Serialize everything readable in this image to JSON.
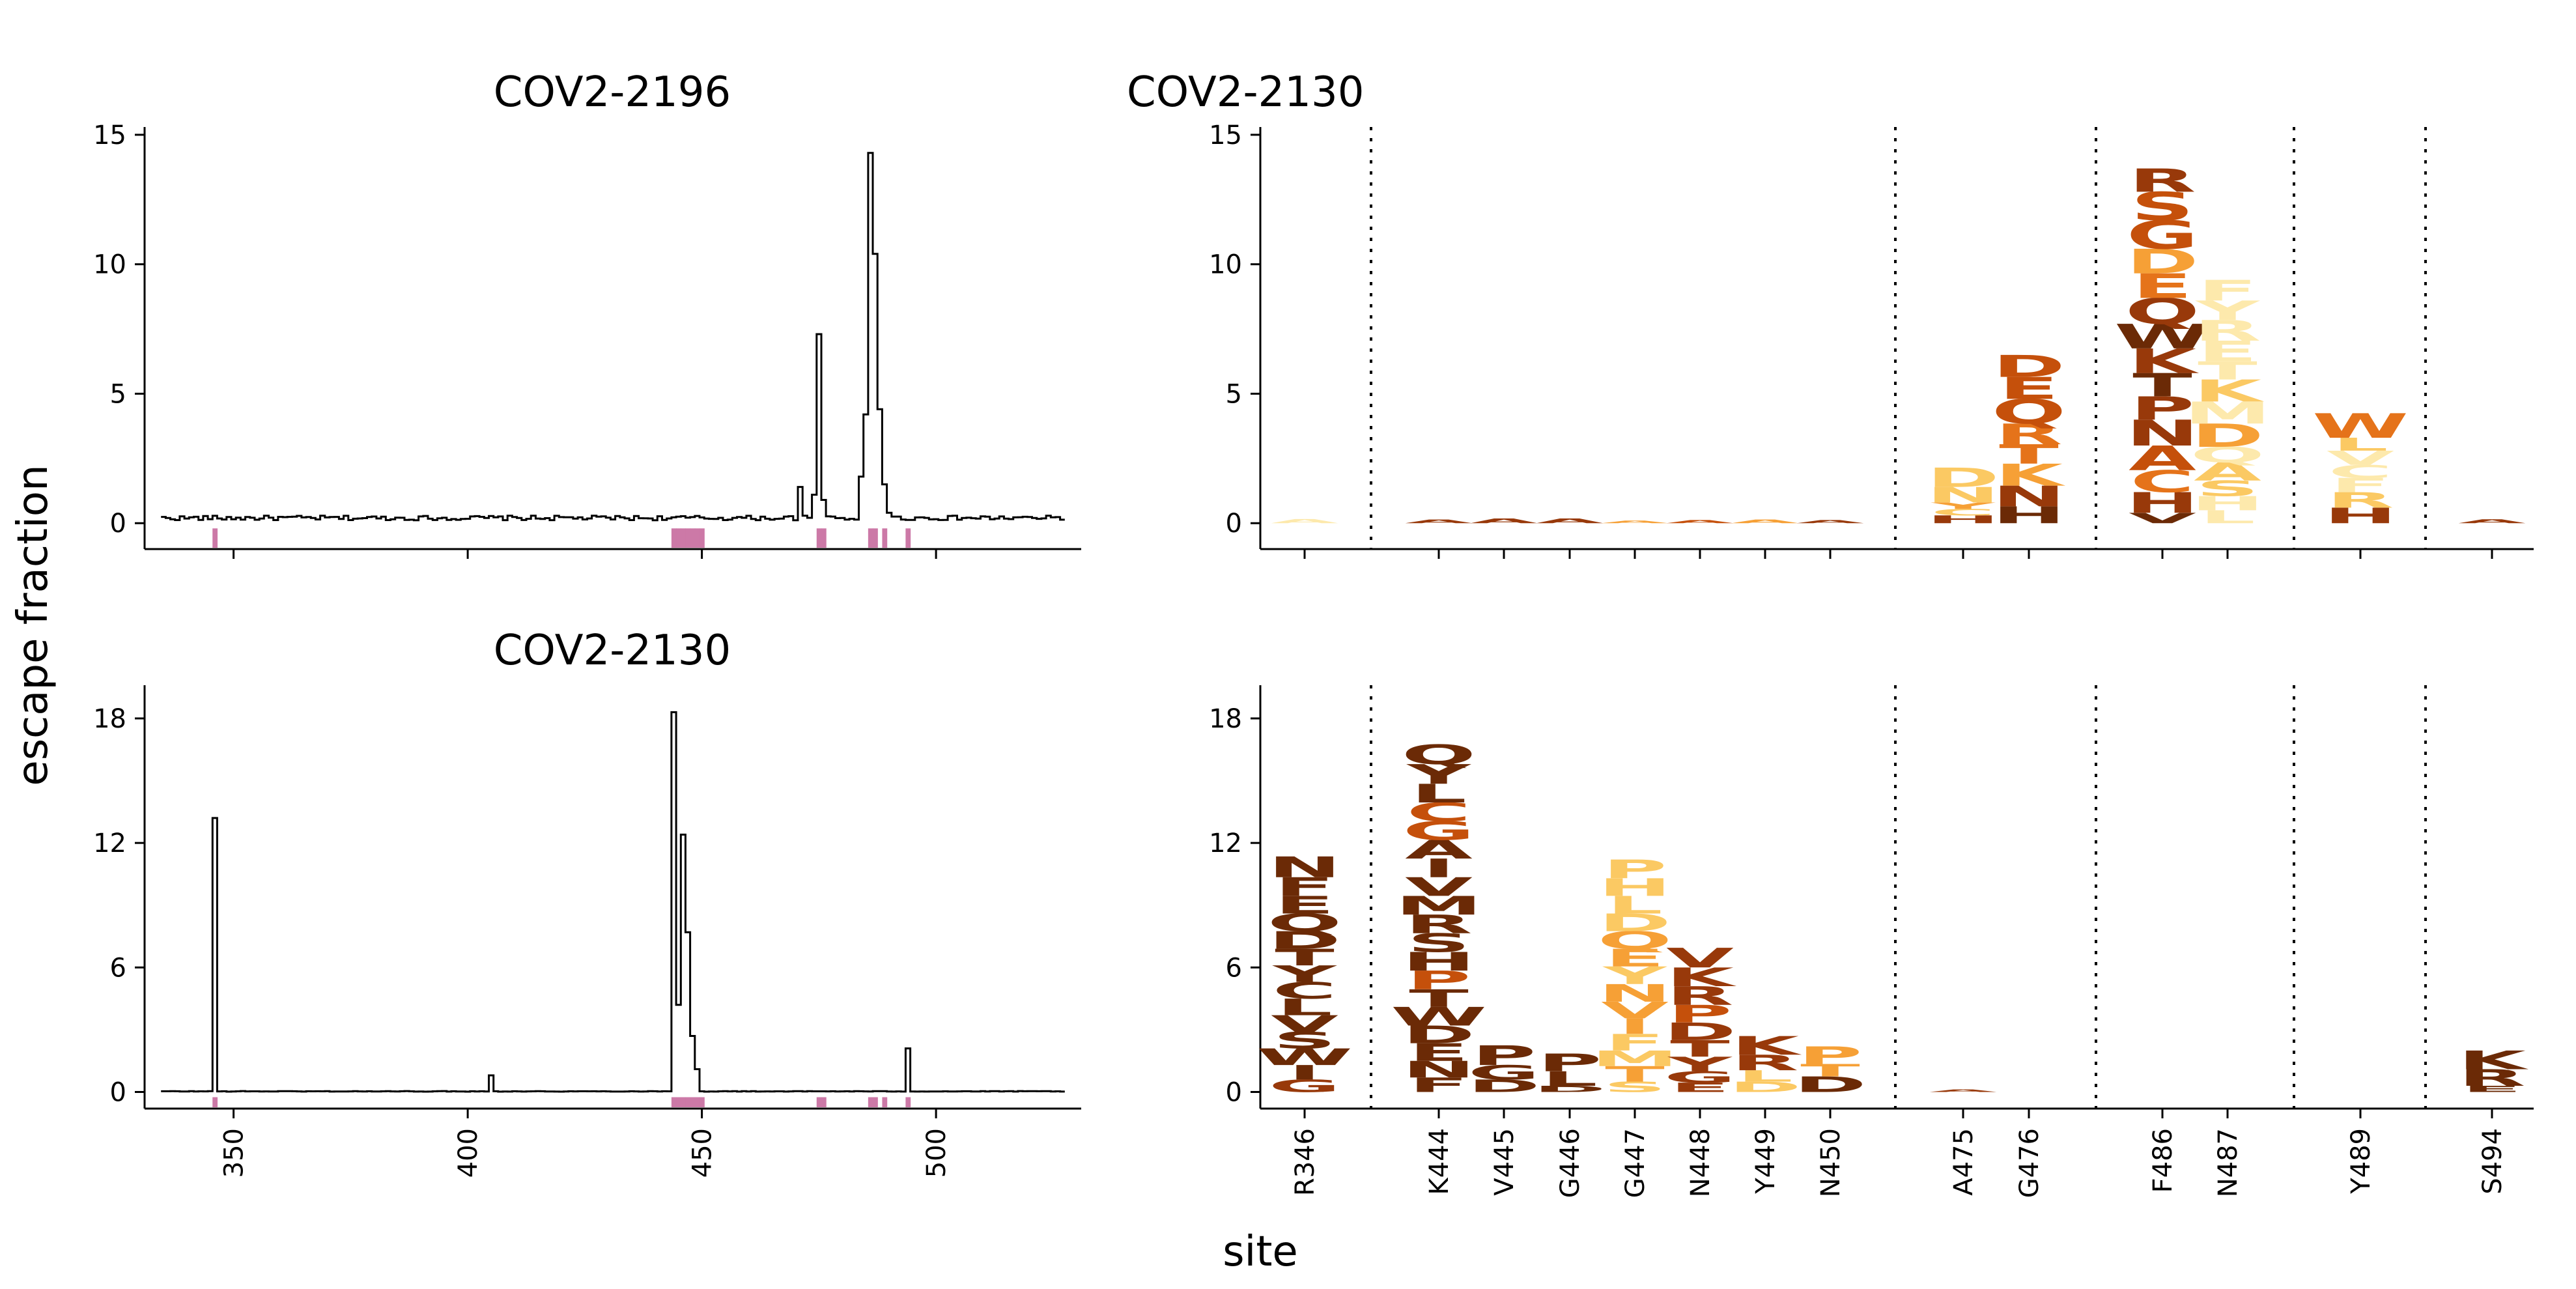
{
  "figure": {
    "ylabel": "escape fraction",
    "xlabel": "site"
  },
  "colors": {
    "trace": "#000000",
    "site_marker": "#cc79a7",
    "divider": "#000000",
    "logo_scale": [
      "#fde9ac",
      "#fbc963",
      "#f6a036",
      "#e5731a",
      "#c5500b",
      "#98390a",
      "#6b2a06"
    ]
  },
  "chart_data": [
    {
      "type": "line",
      "title": "COV2-2196",
      "xlim": [
        331,
        531
      ],
      "ylim": [
        -1,
        15.3
      ],
      "yticks": [
        0,
        5,
        10,
        15
      ],
      "xticks": [
        350,
        400,
        450,
        500
      ],
      "show_xtick_labels": false,
      "baseline": 0.2,
      "peaks": [
        [
          471,
          1.4
        ],
        [
          474,
          1.1
        ],
        [
          475,
          7.3
        ],
        [
          476,
          0.9
        ],
        [
          484,
          1.8
        ],
        [
          485,
          4.2
        ],
        [
          486,
          14.3
        ],
        [
          487,
          10.4
        ],
        [
          488,
          4.4
        ],
        [
          489,
          1.5
        ],
        [
          490,
          0.4
        ]
      ],
      "site_markers": [
        346,
        444,
        445,
        446,
        447,
        448,
        449,
        450,
        475,
        476,
        486,
        487,
        489,
        494
      ]
    },
    {
      "type": "line",
      "title": "COV2-2130",
      "xlim": [
        331,
        531
      ],
      "ylim": [
        -0.8,
        19.6
      ],
      "yticks": [
        0,
        6,
        12,
        18
      ],
      "xticks": [
        350,
        400,
        450,
        500
      ],
      "show_xtick_labels": true,
      "baseline": 0.03,
      "peaks": [
        [
          346,
          13.2
        ],
        [
          405,
          0.8
        ],
        [
          444,
          18.3
        ],
        [
          445,
          4.2
        ],
        [
          446,
          12.4
        ],
        [
          447,
          7.7
        ],
        [
          448,
          2.7
        ],
        [
          449,
          1.1
        ],
        [
          494,
          2.1
        ]
      ],
      "site_markers": [
        346,
        444,
        445,
        446,
        447,
        448,
        449,
        450,
        475,
        476,
        486,
        487,
        489,
        494
      ]
    },
    {
      "type": "logo",
      "title": "COV2-2130",
      "ylim": [
        -1,
        15.3
      ],
      "yticks": [
        0,
        5,
        10,
        15
      ],
      "sites": [
        "R346",
        "K444",
        "V445",
        "G446",
        "G447",
        "N448",
        "Y449",
        "N450",
        "A475",
        "G476",
        "F486",
        "N487",
        "Y489",
        "S494"
      ],
      "group_breaks_after": [
        "R346",
        "N450",
        "G476",
        "N487",
        "Y489"
      ],
      "show_site_labels": false,
      "stacks": [
        {
          "site": "R346",
          "letters": [
            {
              "aa": "A",
              "h": 0.16,
              "c": 0
            }
          ]
        },
        {
          "site": "K444",
          "letters": [
            {
              "aa": "A",
              "h": 0.14,
              "c": 5
            }
          ]
        },
        {
          "site": "V445",
          "letters": [
            {
              "aa": "A",
              "h": 0.18,
              "c": 5
            }
          ]
        },
        {
          "site": "G446",
          "letters": [
            {
              "aa": "A",
              "h": 0.18,
              "c": 5
            }
          ]
        },
        {
          "site": "G447",
          "letters": [
            {
              "aa": "A",
              "h": 0.1,
              "c": 2
            }
          ]
        },
        {
          "site": "N448",
          "letters": [
            {
              "aa": "A",
              "h": 0.12,
              "c": 4
            }
          ]
        },
        {
          "site": "Y449",
          "letters": [
            {
              "aa": "A",
              "h": 0.14,
              "c": 2
            }
          ]
        },
        {
          "site": "N450",
          "letters": [
            {
              "aa": "A",
              "h": 0.12,
              "c": 5
            }
          ]
        },
        {
          "site": "A475",
          "letters": [
            {
              "aa": "H",
              "h": 0.3,
              "c": 5
            },
            {
              "aa": "C",
              "h": 0.25,
              "c": 1
            },
            {
              "aa": "Y",
              "h": 0.25,
              "c": 2
            },
            {
              "aa": "N",
              "h": 0.6,
              "c": 1
            },
            {
              "aa": "D",
              "h": 0.75,
              "c": 1
            }
          ]
        },
        {
          "site": "G476",
          "letters": [
            {
              "aa": "H",
              "h": 0.65,
              "c": 6
            },
            {
              "aa": "N",
              "h": 0.8,
              "c": 5
            },
            {
              "aa": "K",
              "h": 0.85,
              "c": 2
            },
            {
              "aa": "T",
              "h": 0.75,
              "c": 3
            },
            {
              "aa": "R",
              "h": 0.8,
              "c": 3
            },
            {
              "aa": "Q",
              "h": 0.95,
              "c": 4
            },
            {
              "aa": "E",
              "h": 0.85,
              "c": 4
            },
            {
              "aa": "D",
              "h": 0.85,
              "c": 4
            }
          ]
        },
        {
          "site": "F486",
          "letters": [
            {
              "aa": "V",
              "h": 0.4,
              "c": 6
            },
            {
              "aa": "H",
              "h": 0.8,
              "c": 5
            },
            {
              "aa": "C",
              "h": 0.85,
              "c": 3
            },
            {
              "aa": "A",
              "h": 0.95,
              "c": 4
            },
            {
              "aa": "N",
              "h": 1.0,
              "c": 5
            },
            {
              "aa": "P",
              "h": 0.9,
              "c": 5
            },
            {
              "aa": "T",
              "h": 0.9,
              "c": 6
            },
            {
              "aa": "K",
              "h": 0.95,
              "c": 5
            },
            {
              "aa": "W",
              "h": 0.95,
              "c": 6
            },
            {
              "aa": "Q",
              "h": 1.0,
              "c": 5
            },
            {
              "aa": "E",
              "h": 0.95,
              "c": 3
            },
            {
              "aa": "D",
              "h": 0.95,
              "c": 2
            },
            {
              "aa": "G",
              "h": 1.1,
              "c": 4
            },
            {
              "aa": "S",
              "h": 1.1,
              "c": 4
            },
            {
              "aa": "R",
              "h": 0.9,
              "c": 5
            }
          ]
        },
        {
          "site": "N487",
          "letters": [
            {
              "aa": "L",
              "h": 0.5,
              "c": 0
            },
            {
              "aa": "H",
              "h": 0.55,
              "c": 0
            },
            {
              "aa": "S",
              "h": 0.6,
              "c": 1
            },
            {
              "aa": "A",
              "h": 0.7,
              "c": 1
            },
            {
              "aa": "Q",
              "h": 0.6,
              "c": 0
            },
            {
              "aa": "D",
              "h": 0.9,
              "c": 2
            },
            {
              "aa": "M",
              "h": 0.85,
              "c": 0
            },
            {
              "aa": "K",
              "h": 0.85,
              "c": 1
            },
            {
              "aa": "T",
              "h": 0.7,
              "c": 0
            },
            {
              "aa": "E",
              "h": 0.8,
              "c": 0
            },
            {
              "aa": "R",
              "h": 0.8,
              "c": 0
            },
            {
              "aa": "Y",
              "h": 0.75,
              "c": 0
            },
            {
              "aa": "F",
              "h": 0.8,
              "c": 0
            }
          ]
        },
        {
          "site": "Y489",
          "letters": [
            {
              "aa": "H",
              "h": 0.6,
              "c": 5
            },
            {
              "aa": "R",
              "h": 0.6,
              "c": 1
            },
            {
              "aa": "F",
              "h": 0.55,
              "c": 0
            },
            {
              "aa": "C",
              "h": 0.5,
              "c": 0
            },
            {
              "aa": "V",
              "h": 0.55,
              "c": 0
            },
            {
              "aa": "L",
              "h": 0.5,
              "c": 1
            },
            {
              "aa": "W",
              "h": 0.95,
              "c": 3
            }
          ]
        },
        {
          "site": "S494",
          "letters": [
            {
              "aa": "A",
              "h": 0.15,
              "c": 5
            }
          ]
        }
      ]
    },
    {
      "type": "logo",
      "title": "",
      "ylim": [
        -0.8,
        19.6
      ],
      "yticks": [
        0,
        6,
        12,
        18
      ],
      "sites": [
        "R346",
        "K444",
        "V445",
        "G446",
        "G447",
        "N448",
        "Y449",
        "N450",
        "A475",
        "G476",
        "F486",
        "N487",
        "Y489",
        "S494"
      ],
      "group_breaks_after": [
        "R346",
        "N450",
        "G476",
        "N487",
        "Y489"
      ],
      "show_site_labels": true,
      "stacks": [
        {
          "site": "R346",
          "letters": [
            {
              "aa": "G",
              "h": 0.6,
              "c": 5
            },
            {
              "aa": "I",
              "h": 0.7,
              "c": 6
            },
            {
              "aa": "W",
              "h": 0.8,
              "c": 6
            },
            {
              "aa": "S",
              "h": 0.8,
              "c": 6
            },
            {
              "aa": "V",
              "h": 0.8,
              "c": 6
            },
            {
              "aa": "L",
              "h": 0.8,
              "c": 6
            },
            {
              "aa": "C",
              "h": 0.8,
              "c": 6
            },
            {
              "aa": "Y",
              "h": 0.8,
              "c": 6
            },
            {
              "aa": "T",
              "h": 0.8,
              "c": 6
            },
            {
              "aa": "D",
              "h": 0.85,
              "c": 6
            },
            {
              "aa": "Q",
              "h": 0.85,
              "c": 6
            },
            {
              "aa": "E",
              "h": 0.85,
              "c": 6
            },
            {
              "aa": "F",
              "h": 0.9,
              "c": 6
            },
            {
              "aa": "N",
              "h": 1.0,
              "c": 6
            }
          ]
        },
        {
          "site": "K444",
          "letters": [
            {
              "aa": "F",
              "h": 0.7,
              "c": 6
            },
            {
              "aa": "N",
              "h": 0.8,
              "c": 6
            },
            {
              "aa": "E",
              "h": 0.85,
              "c": 6
            },
            {
              "aa": "D",
              "h": 0.85,
              "c": 6
            },
            {
              "aa": "W",
              "h": 0.9,
              "c": 6
            },
            {
              "aa": "T",
              "h": 0.85,
              "c": 6
            },
            {
              "aa": "P",
              "h": 0.9,
              "c": 4
            },
            {
              "aa": "H",
              "h": 0.9,
              "c": 6
            },
            {
              "aa": "S",
              "h": 0.9,
              "c": 6
            },
            {
              "aa": "R",
              "h": 0.9,
              "c": 6
            },
            {
              "aa": "M",
              "h": 0.9,
              "c": 6
            },
            {
              "aa": "V",
              "h": 0.9,
              "c": 6
            },
            {
              "aa": "I",
              "h": 0.9,
              "c": 6
            },
            {
              "aa": "A",
              "h": 0.9,
              "c": 6
            },
            {
              "aa": "G",
              "h": 0.9,
              "c": 4
            },
            {
              "aa": "C",
              "h": 0.9,
              "c": 4
            },
            {
              "aa": "L",
              "h": 0.9,
              "c": 6
            },
            {
              "aa": "Y",
              "h": 0.95,
              "c": 6
            },
            {
              "aa": "Q",
              "h": 0.95,
              "c": 6
            }
          ]
        },
        {
          "site": "V445",
          "letters": [
            {
              "aa": "D",
              "h": 0.6,
              "c": 6
            },
            {
              "aa": "G",
              "h": 0.7,
              "c": 6
            },
            {
              "aa": "P",
              "h": 0.95,
              "c": 6
            }
          ]
        },
        {
          "site": "G446",
          "letters": [
            {
              "aa": "D",
              "h": 0.3,
              "c": 6
            },
            {
              "aa": "L",
              "h": 0.7,
              "c": 6
            },
            {
              "aa": "P",
              "h": 0.85,
              "c": 6
            }
          ]
        },
        {
          "site": "G447",
          "letters": [
            {
              "aa": "S",
              "h": 0.5,
              "c": 1
            },
            {
              "aa": "T",
              "h": 0.75,
              "c": 2
            },
            {
              "aa": "M",
              "h": 0.75,
              "c": 1
            },
            {
              "aa": "F",
              "h": 0.8,
              "c": 1
            },
            {
              "aa": "I",
              "h": 0.75,
              "c": 2
            },
            {
              "aa": "V",
              "h": 0.8,
              "c": 2
            },
            {
              "aa": "N",
              "h": 0.85,
              "c": 2
            },
            {
              "aa": "Y",
              "h": 0.85,
              "c": 1
            },
            {
              "aa": "E",
              "h": 0.85,
              "c": 2
            },
            {
              "aa": "Q",
              "h": 0.85,
              "c": 2
            },
            {
              "aa": "D",
              "h": 0.85,
              "c": 1
            },
            {
              "aa": "L",
              "h": 0.85,
              "c": 1
            },
            {
              "aa": "H",
              "h": 0.85,
              "c": 1
            },
            {
              "aa": "P",
              "h": 0.9,
              "c": 1
            }
          ]
        },
        {
          "site": "N448",
          "letters": [
            {
              "aa": "E",
              "h": 0.45,
              "c": 5
            },
            {
              "aa": "G",
              "h": 0.55,
              "c": 5
            },
            {
              "aa": "Y",
              "h": 0.7,
              "c": 5
            },
            {
              "aa": "T",
              "h": 0.8,
              "c": 5
            },
            {
              "aa": "D",
              "h": 0.85,
              "c": 5
            },
            {
              "aa": "P",
              "h": 0.85,
              "c": 4
            },
            {
              "aa": "R",
              "h": 0.9,
              "c": 5
            },
            {
              "aa": "K",
              "h": 0.9,
              "c": 5
            },
            {
              "aa": "V",
              "h": 0.95,
              "c": 5
            }
          ]
        },
        {
          "site": "Y449",
          "letters": [
            {
              "aa": "D",
              "h": 0.5,
              "c": 1
            },
            {
              "aa": "L",
              "h": 0.55,
              "c": 1
            },
            {
              "aa": "R",
              "h": 0.75,
              "c": 5
            },
            {
              "aa": "K",
              "h": 0.9,
              "c": 5
            }
          ]
        },
        {
          "site": "N450",
          "letters": [
            {
              "aa": "D",
              "h": 0.75,
              "c": 6
            },
            {
              "aa": "T",
              "h": 0.6,
              "c": 2
            },
            {
              "aa": "P",
              "h": 0.85,
              "c": 2
            }
          ]
        },
        {
          "site": "A475",
          "letters": [
            {
              "aa": "A",
              "h": 0.12,
              "c": 5
            }
          ]
        },
        {
          "site": "G476",
          "letters": []
        },
        {
          "site": "F486",
          "letters": []
        },
        {
          "site": "N487",
          "letters": []
        },
        {
          "site": "Y489",
          "letters": []
        },
        {
          "site": "S494",
          "letters": [
            {
              "aa": "E",
              "h": 0.3,
              "c": 6
            },
            {
              "aa": "R",
              "h": 0.8,
              "c": 6
            },
            {
              "aa": "K",
              "h": 0.9,
              "c": 6
            }
          ]
        }
      ]
    }
  ]
}
